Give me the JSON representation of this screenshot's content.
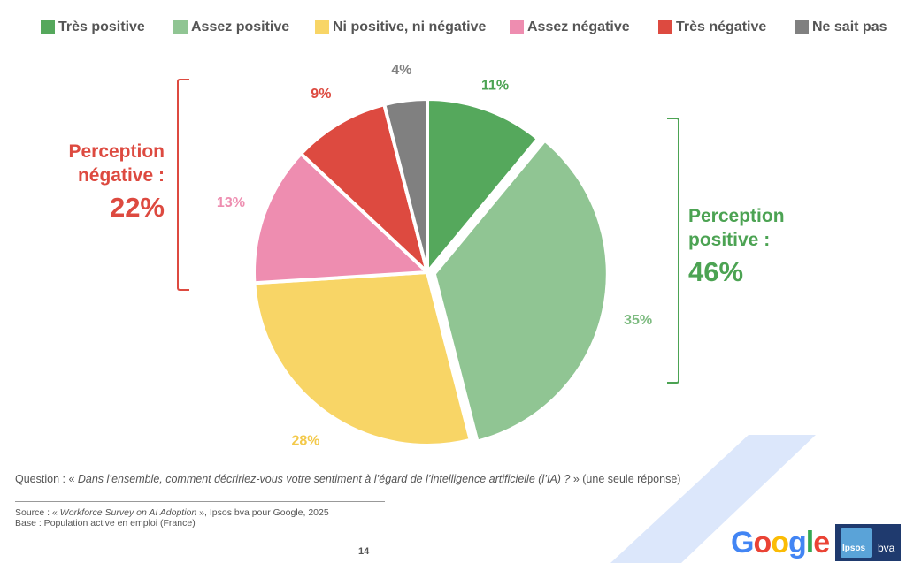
{
  "chart_data": {
    "type": "pie",
    "slices": [
      {
        "label": "Très positive",
        "value": 11,
        "display": "11%",
        "color": "#55a85c"
      },
      {
        "label": "Assez positive",
        "value": 35,
        "display": "35%",
        "color": "#90c593"
      },
      {
        "label": "Ni positive, ni négative",
        "value": 28,
        "display": "28%",
        "color": "#f8d566"
      },
      {
        "label": "Assez négative",
        "value": 13,
        "display": "13%",
        "color": "#ee8db0"
      },
      {
        "label": "Très négative",
        "value": 9,
        "display": "9%",
        "color": "#dd4a40"
      },
      {
        "label": "Ne sait pas",
        "value": 4,
        "display": "4%",
        "color": "#808080"
      }
    ],
    "legend_position": "top",
    "label_colors": [
      "#4ca353",
      "#7dbb80",
      "#f3c94a",
      "#ee8db0",
      "#dd4a40",
      "#808080"
    ]
  },
  "groups": {
    "negative": {
      "title_line1": "Perception",
      "title_line2": "négative :",
      "value": "22%"
    },
    "positive": {
      "title_line1": "Perception",
      "title_line2": "positive :",
      "value": "46%"
    }
  },
  "footer": {
    "question_prefix": "Question : « ",
    "question_italic": "Dans l’ensemble, comment décririez-vous votre sentiment à l’égard de l’intelligence artificielle (l’IA) ?",
    "question_suffix": " » (une seule réponse)",
    "source_prefix": "Source : « ",
    "source_italic": "Workforce Survey on AI Adoption",
    "source_suffix": " », Ipsos bva pour Google, 2025",
    "base": "Base : Population active en emploi (France)",
    "page_number": "14"
  },
  "logos": {
    "google": "Google",
    "ipsos": "Ipsos",
    "bva": "bva",
    "google_colors": [
      "#4285F4",
      "#EA4335",
      "#FBBC05",
      "#4285F4",
      "#34A853",
      "#EA4335"
    ]
  }
}
